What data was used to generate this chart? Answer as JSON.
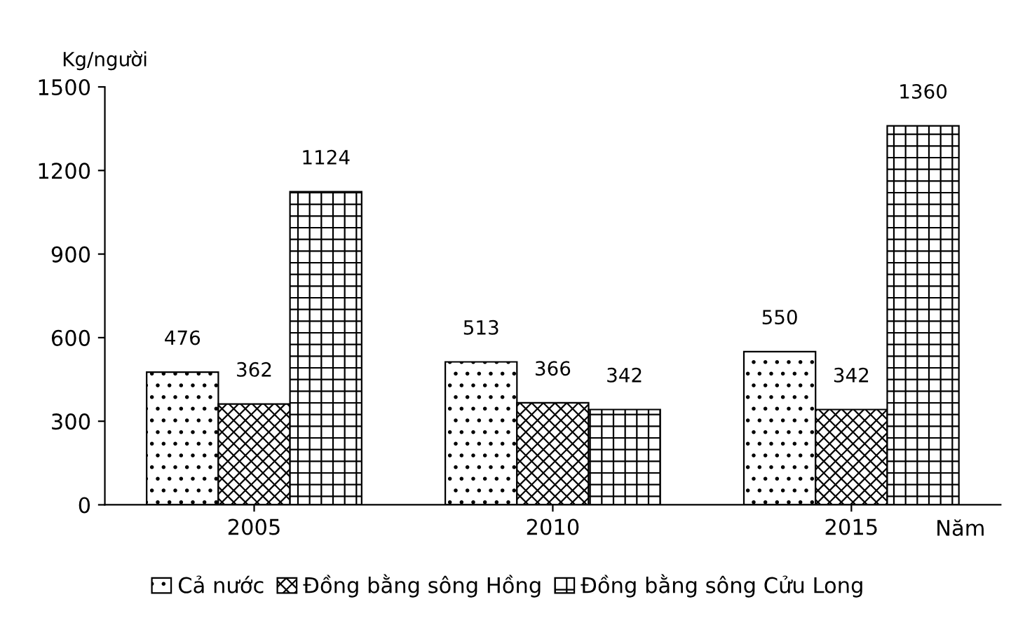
{
  "chart_data": {
    "type": "bar",
    "ylabel": "Kg/người",
    "xlabel": "Năm",
    "categories": [
      "2005",
      "2010",
      "2015"
    ],
    "series": [
      {
        "name": "Cả nước",
        "color": "#000000",
        "values": [
          476,
          513,
          550
        ]
      },
      {
        "name": "Đồng bằng sông Hồng",
        "color": "#000000",
        "values": [
          362,
          366,
          342
        ]
      },
      {
        "name": "Đồng bằng sông Cửu Long",
        "color": "#000000",
        "values": [
          1124,
          342,
          1360
        ]
      }
    ],
    "ylim": [
      0,
      1500
    ],
    "yticks": [
      0,
      300,
      600,
      900,
      1200,
      1500
    ],
    "grid": false,
    "legend": "bottom",
    "data_labels": true
  }
}
